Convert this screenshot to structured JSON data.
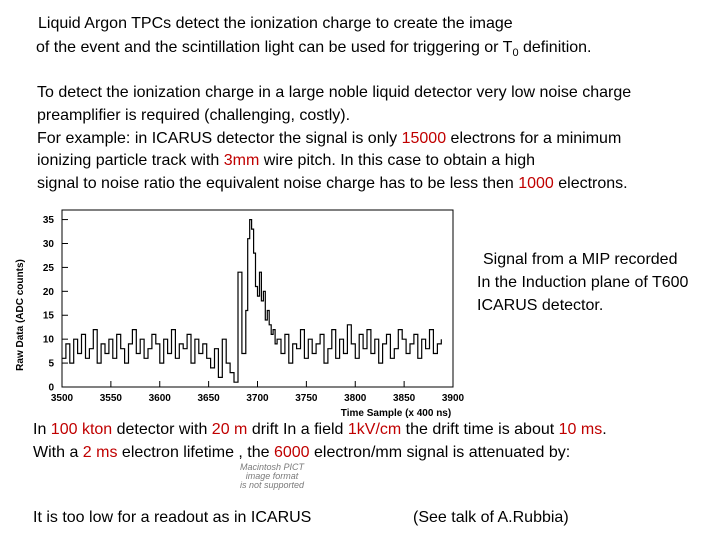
{
  "intro": {
    "line1": "Liquid Argon TPCs detect the ionization charge to create the image",
    "line2_prefix": "of the event and the scintillation light can be used for triggering or T",
    "line2_sub": "0",
    "line2_suffix": " definition."
  },
  "para": {
    "l1": "To detect the ionization charge in a large noble liquid detector very low noise charge",
    "l2": "preamplifier is required (challenging, costly).",
    "l3_a": "For example: in ICARUS detector the signal is only ",
    "l3_red": "15000",
    "l3_b": " electrons for a minimum",
    "l4_a": "ionizing particle track with ",
    "l4_red": "3mm",
    "l4_b": " wire pitch. In this case to obtain a high",
    "l5_a": "signal to noise ratio the equivalent noise charge has to be less then ",
    "l5_red": "1000",
    "l5_b": " electrons."
  },
  "caption": {
    "l1": "Signal from a MIP recorded",
    "l2": "In the Induction plane of T600",
    "l3": "ICARUS detector."
  },
  "bottom": {
    "l1_a": "In ",
    "l1_r1": "100 kton",
    "l1_b": " detector with ",
    "l1_r2": "20 m",
    "l1_c": " drift In a field ",
    "l1_r3": "1kV/cm",
    "l1_d": " the drift time is about ",
    "l1_r4": "10 ms",
    "l1_e": ".",
    "l2_a": "With a ",
    "l2_r1": "2 ms",
    "l2_b": " electron lifetime , the ",
    "l2_r2": "6000",
    "l2_c": " electron/mm signal is attenuated by:",
    "l3": "It is too low for a readout as in ICARUS",
    "l4": "(See talk of A.Rubbia)"
  },
  "watermark": {
    "l1": "Macintosh PICT",
    "l2": "image format",
    "l3": "is not supported"
  },
  "colors": {
    "highlight": "#c00000",
    "text": "#000000",
    "trace": "#000000"
  },
  "chart_data": {
    "type": "line",
    "title": "",
    "xlabel": "Time Sample (x 400 ns)",
    "ylabel": "Raw Data (ADC counts)",
    "xlim": [
      3500,
      3900
    ],
    "ylim": [
      0,
      37
    ],
    "xticks": [
      3500,
      3550,
      3600,
      3650,
      3700,
      3750,
      3800,
      3850,
      3900
    ],
    "yticks": [
      0,
      5,
      10,
      15,
      20,
      25,
      30,
      35
    ],
    "grid": false,
    "series": [
      {
        "x": [
          3500,
          3504,
          3508,
          3512,
          3516,
          3520,
          3524,
          3528,
          3532,
          3536,
          3540,
          3544,
          3548,
          3552,
          3556,
          3560,
          3564,
          3568,
          3572,
          3576,
          3580,
          3584,
          3588,
          3592,
          3596,
          3600,
          3604,
          3608,
          3612,
          3616,
          3620,
          3624,
          3628,
          3632,
          3636,
          3640,
          3644,
          3648,
          3652,
          3656,
          3660,
          3664,
          3668,
          3672,
          3676,
          3680,
          3684,
          3688,
          3690,
          3692,
          3694,
          3696,
          3698,
          3700,
          3702,
          3704,
          3706,
          3708,
          3710,
          3712,
          3714,
          3716,
          3718,
          3720,
          3724,
          3728,
          3732,
          3736,
          3740,
          3744,
          3748,
          3752,
          3756,
          3760,
          3764,
          3768,
          3772,
          3776,
          3780,
          3784,
          3788,
          3792,
          3796,
          3800,
          3804,
          3808,
          3812,
          3816,
          3820,
          3824,
          3828,
          3832,
          3836,
          3840,
          3844,
          3848,
          3852,
          3856,
          3860,
          3864,
          3868,
          3872,
          3876,
          3880,
          3884,
          3888
        ],
        "y": [
          6,
          9,
          5,
          10,
          7,
          11,
          6,
          8,
          12,
          5,
          9,
          7,
          10,
          6,
          11,
          8,
          5,
          9,
          12,
          7,
          10,
          6,
          8,
          11,
          9,
          5,
          10,
          7,
          12,
          6,
          9,
          8,
          11,
          5,
          10,
          7,
          9,
          6,
          4,
          8,
          2,
          10,
          5,
          3,
          1,
          24,
          7,
          16,
          31,
          35,
          33,
          28,
          21,
          19,
          24,
          18,
          20,
          14,
          16,
          13,
          11,
          12,
          9,
          10,
          7,
          11,
          5,
          9,
          8,
          12,
          6,
          10,
          7,
          9,
          11,
          5,
          8,
          12,
          6,
          10,
          7,
          13,
          9,
          6,
          11,
          8,
          12,
          7,
          10,
          5,
          9,
          11,
          6,
          8,
          12,
          10,
          7,
          9,
          11,
          6,
          10,
          8,
          12,
          7,
          9,
          10
        ]
      }
    ]
  }
}
